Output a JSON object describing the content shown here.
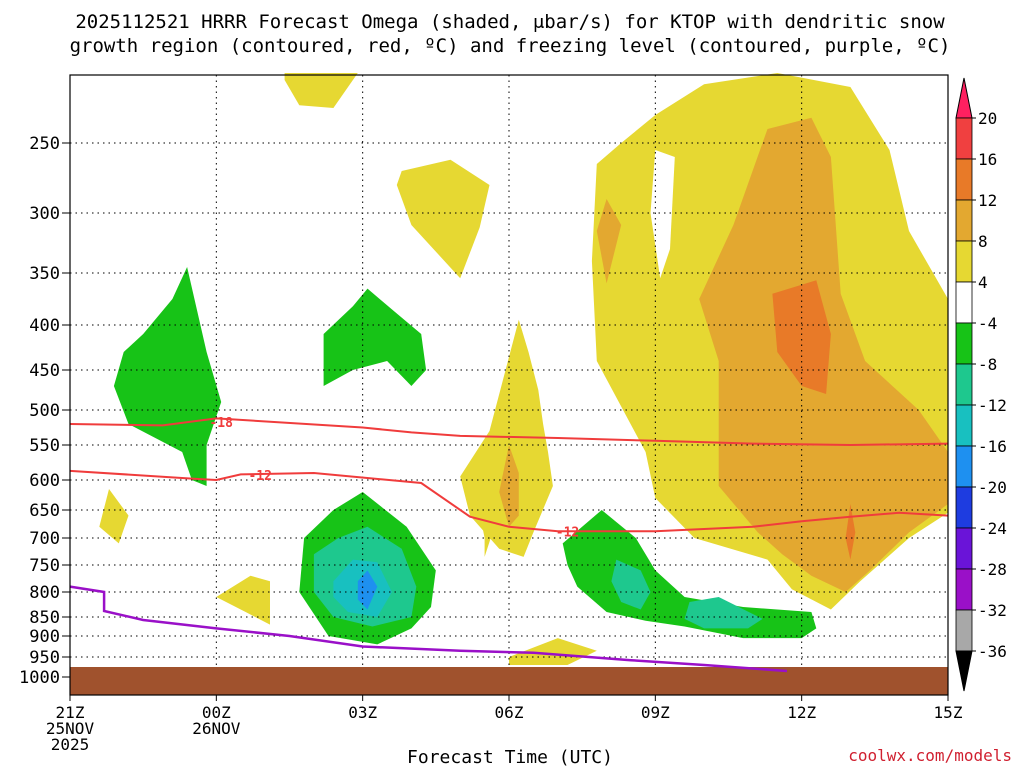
{
  "chart_data": {
    "type": "heatmap",
    "title_line1": "2025112521 HRRR Forecast Omega (shaded, μbar/s) for KTOP with dendritic snow",
    "title_line2": "growth region (contoured, red, ºC) and freezing level (contoured, purple, ºC)",
    "xlabel": "Forecast Time (UTC)",
    "ylabel": "",
    "credit": "coolwx.com/models",
    "x_range_hours": [
      0,
      18
    ],
    "x_ticks": [
      {
        "hour": 0,
        "lines": [
          "21Z",
          "25NOV",
          "2025"
        ]
      },
      {
        "hour": 3,
        "lines": [
          "00Z",
          "26NOV"
        ]
      },
      {
        "hour": 6,
        "lines": [
          "03Z"
        ]
      },
      {
        "hour": 9,
        "lines": [
          "06Z"
        ]
      },
      {
        "hour": 12,
        "lines": [
          "09Z"
        ]
      },
      {
        "hour": 15,
        "lines": [
          "12Z"
        ]
      },
      {
        "hour": 18,
        "lines": [
          "15Z"
        ]
      }
    ],
    "y_ticks_hpa": [
      250,
      300,
      350,
      400,
      450,
      500,
      550,
      600,
      650,
      700,
      750,
      800,
      850,
      900,
      950,
      1000
    ],
    "colorbar": {
      "levels": [
        20,
        16,
        12,
        8,
        4,
        -4,
        -8,
        -12,
        -16,
        -20,
        -24,
        -28,
        -32,
        -36
      ],
      "colors": [
        "#ff2060",
        "#f04040",
        "#e87a28",
        "#e3a830",
        "#e6d832",
        "#ffffff",
        "#17c317",
        "#1ec88e",
        "#18c0c0",
        "#1e90f0",
        "#1e3ce0",
        "#6a14d8",
        "#9a10c8",
        "#a8a8a8",
        "#000000"
      ]
    },
    "omega_regions": [
      {
        "value": 4,
        "color": "#e6d832",
        "points": [
          [
            4.4,
            180
          ],
          [
            5.8,
            180
          ],
          [
            5.9,
            196
          ],
          [
            5.4,
            225
          ],
          [
            4.7,
            223
          ],
          [
            4.4,
            205
          ]
        ]
      },
      {
        "value": 4,
        "color": "#e6d832",
        "points": [
          [
            6.8,
            270
          ],
          [
            7.8,
            262
          ],
          [
            8.6,
            280
          ],
          [
            8.4,
            312
          ],
          [
            8.0,
            355
          ],
          [
            7.0,
            310
          ],
          [
            6.7,
            280
          ]
        ]
      },
      {
        "value": 4,
        "color": "#e6d832",
        "points": [
          [
            10.8,
            265
          ],
          [
            11.3,
            250
          ],
          [
            12.0,
            230
          ],
          [
            13.0,
            208
          ],
          [
            14.5,
            200
          ],
          [
            16.0,
            210
          ],
          [
            16.8,
            255
          ],
          [
            17.2,
            315
          ],
          [
            18.0,
            375
          ],
          [
            18.0,
            655
          ],
          [
            17.2,
            700
          ],
          [
            16.2,
            780
          ],
          [
            15.6,
            835
          ],
          [
            14.8,
            795
          ],
          [
            14.3,
            740
          ],
          [
            12.8,
            700
          ],
          [
            12.0,
            630
          ],
          [
            11.8,
            560
          ],
          [
            10.8,
            440
          ],
          [
            10.7,
            340
          ]
        ]
      },
      {
        "value": 4,
        "color": "#e6d832",
        "points": [
          [
            8.8,
            570
          ],
          [
            9.5,
            450
          ],
          [
            9.0,
            620
          ],
          [
            8.7,
            680
          ],
          [
            8.5,
            735
          ],
          [
            8.5,
            700
          ],
          [
            8.3,
            615
          ]
        ]
      },
      {
        "value": 4,
        "color": "#e6d832",
        "points": [
          [
            9.2,
            395
          ],
          [
            9.4,
            430
          ],
          [
            9.6,
            475
          ],
          [
            9.7,
            520
          ],
          [
            9.8,
            560
          ],
          [
            9.9,
            610
          ],
          [
            9.5,
            690
          ],
          [
            9.3,
            735
          ],
          [
            8.8,
            720
          ],
          [
            8.2,
            660
          ],
          [
            8.0,
            595
          ],
          [
            8.6,
            530
          ]
        ]
      },
      {
        "value": 4,
        "color": "#e6d832",
        "points": [
          [
            0.8,
            615
          ],
          [
            1.2,
            660
          ],
          [
            1.0,
            710
          ],
          [
            0.6,
            680
          ]
        ]
      },
      {
        "value": 4,
        "color": "#e6d832",
        "points": [
          [
            3.0,
            810
          ],
          [
            3.7,
            770
          ],
          [
            4.1,
            780
          ],
          [
            4.1,
            870
          ],
          [
            3.6,
            840
          ]
        ]
      },
      {
        "value": 4,
        "color": "#e6d832",
        "points": [
          [
            9.0,
            950
          ],
          [
            10.0,
            905
          ],
          [
            10.8,
            935
          ],
          [
            10.2,
            970
          ],
          [
            9.0,
            970
          ]
        ]
      },
      {
        "value": -4,
        "color": "#ffffff",
        "points": [
          [
            12.0,
            255
          ],
          [
            12.4,
            260
          ],
          [
            12.3,
            330
          ],
          [
            12.1,
            355
          ],
          [
            11.9,
            300
          ]
        ]
      },
      {
        "value": 8,
        "color": "#e3a830",
        "points": [
          [
            13.3,
            440
          ],
          [
            12.9,
            375
          ],
          [
            13.6,
            310
          ],
          [
            14.3,
            240
          ],
          [
            15.2,
            232
          ],
          [
            15.6,
            260
          ],
          [
            15.8,
            370
          ],
          [
            16.3,
            440
          ],
          [
            17.4,
            500
          ],
          [
            18.0,
            560
          ],
          [
            18.0,
            640
          ],
          [
            17.2,
            690
          ],
          [
            16.4,
            760
          ],
          [
            15.9,
            800
          ],
          [
            15.2,
            770
          ],
          [
            14.6,
            730
          ],
          [
            14.1,
            690
          ],
          [
            13.3,
            610
          ]
        ]
      },
      {
        "value": 8,
        "color": "#e3a830",
        "points": [
          [
            11.0,
            290
          ],
          [
            11.3,
            310
          ],
          [
            11.0,
            360
          ],
          [
            10.8,
            315
          ]
        ]
      },
      {
        "value": 8,
        "color": "#e3a830",
        "points": [
          [
            9.0,
            550
          ],
          [
            9.2,
            590
          ],
          [
            9.2,
            660
          ],
          [
            9.0,
            680
          ],
          [
            8.8,
            620
          ]
        ]
      },
      {
        "value": 12,
        "color": "#e87a28",
        "points": [
          [
            14.4,
            370
          ],
          [
            15.3,
            357
          ],
          [
            15.6,
            410
          ],
          [
            15.5,
            480
          ],
          [
            15.0,
            470
          ],
          [
            14.5,
            430
          ]
        ]
      },
      {
        "value": 12,
        "color": "#e87a28",
        "points": [
          [
            16.0,
            640
          ],
          [
            16.1,
            690
          ],
          [
            16.0,
            740
          ],
          [
            15.9,
            700
          ]
        ]
      },
      {
        "value": -4,
        "color": "#17c317",
        "points": [
          [
            1.5,
            410
          ],
          [
            2.1,
            375
          ],
          [
            2.4,
            345
          ],
          [
            2.8,
            430
          ],
          [
            3.1,
            490
          ],
          [
            2.8,
            550
          ],
          [
            2.8,
            610
          ],
          [
            2.5,
            600
          ],
          [
            2.3,
            560
          ],
          [
            1.2,
            520
          ],
          [
            0.9,
            470
          ],
          [
            1.1,
            430
          ]
        ]
      },
      {
        "value": -4,
        "color": "#17c317",
        "points": [
          [
            5.2,
            410
          ],
          [
            5.8,
            382
          ],
          [
            6.1,
            365
          ],
          [
            6.6,
            385
          ],
          [
            7.2,
            410
          ],
          [
            7.3,
            450
          ],
          [
            7.0,
            470
          ],
          [
            6.5,
            440
          ],
          [
            5.8,
            450
          ],
          [
            5.2,
            470
          ]
        ]
      },
      {
        "value": -4,
        "color": "#17c317",
        "points": [
          [
            4.8,
            700
          ],
          [
            5.4,
            650
          ],
          [
            6.0,
            620
          ],
          [
            6.9,
            680
          ],
          [
            7.5,
            760
          ],
          [
            7.4,
            830
          ],
          [
            7.0,
            880
          ],
          [
            6.3,
            920
          ],
          [
            5.3,
            900
          ],
          [
            4.7,
            800
          ]
        ]
      },
      {
        "value": -4,
        "color": "#17c317",
        "points": [
          [
            10.1,
            710
          ],
          [
            10.9,
            650
          ],
          [
            11.6,
            700
          ],
          [
            12.0,
            760
          ],
          [
            12.6,
            810
          ],
          [
            13.8,
            830
          ],
          [
            15.2,
            840
          ],
          [
            15.3,
            880
          ],
          [
            15.0,
            905
          ],
          [
            13.8,
            905
          ],
          [
            12.6,
            875
          ],
          [
            11.8,
            860
          ],
          [
            11.0,
            840
          ],
          [
            10.4,
            790
          ],
          [
            10.2,
            750
          ]
        ]
      },
      {
        "value": -8,
        "color": "#1ec88e",
        "points": [
          [
            5.0,
            730
          ],
          [
            5.5,
            700
          ],
          [
            6.1,
            680
          ],
          [
            6.8,
            720
          ],
          [
            7.1,
            790
          ],
          [
            7.0,
            850
          ],
          [
            6.2,
            875
          ],
          [
            5.4,
            850
          ],
          [
            5.0,
            800
          ]
        ]
      },
      {
        "value": -8,
        "color": "#1ec88e",
        "points": [
          [
            11.2,
            740
          ],
          [
            11.7,
            760
          ],
          [
            11.9,
            800
          ],
          [
            11.7,
            835
          ],
          [
            11.3,
            820
          ],
          [
            11.1,
            780
          ]
        ]
      },
      {
        "value": -8,
        "color": "#1ec88e",
        "points": [
          [
            12.7,
            820
          ],
          [
            13.3,
            810
          ],
          [
            14.2,
            855
          ],
          [
            13.9,
            880
          ],
          [
            13.0,
            880
          ],
          [
            12.6,
            855
          ]
        ]
      },
      {
        "value": -12,
        "color": "#18c0c0",
        "points": [
          [
            5.4,
            780
          ],
          [
            5.8,
            740
          ],
          [
            6.3,
            745
          ],
          [
            6.6,
            800
          ],
          [
            6.3,
            850
          ],
          [
            5.7,
            840
          ],
          [
            5.4,
            810
          ]
        ]
      },
      {
        "value": -16,
        "color": "#1e90f0",
        "points": [
          [
            5.9,
            780
          ],
          [
            6.1,
            760
          ],
          [
            6.3,
            790
          ],
          [
            6.1,
            835
          ],
          [
            5.9,
            815
          ]
        ]
      }
    ],
    "dgz_contours": [
      {
        "label": "-18",
        "label_at": [
          3.1,
          517
        ],
        "points": [
          [
            0,
            520
          ],
          [
            1.9,
            522
          ],
          [
            3.0,
            512
          ],
          [
            6.0,
            525
          ],
          [
            7.0,
            532
          ],
          [
            8.0,
            537
          ],
          [
            10.0,
            540
          ],
          [
            12.0,
            544
          ],
          [
            14.0,
            548
          ],
          [
            16.0,
            550
          ],
          [
            18.0,
            548
          ]
        ]
      },
      {
        "label": "-12",
        "label_at": [
          3.9,
          593
        ],
        "points": [
          [
            0,
            587
          ],
          [
            2.5,
            598
          ],
          [
            3.0,
            600
          ],
          [
            3.5,
            592
          ],
          [
            5.0,
            590
          ],
          [
            7.2,
            605
          ],
          [
            8.2,
            662
          ],
          [
            9.0,
            680
          ],
          [
            10.0,
            688
          ],
          [
            12.0,
            688
          ],
          [
            14.0,
            680
          ],
          [
            15.0,
            670
          ],
          [
            16.0,
            662
          ],
          [
            17.0,
            655
          ],
          [
            18.0,
            660
          ]
        ]
      },
      {
        "label": "-12",
        "label_at": [
          10.2,
          688
        ],
        "points": []
      }
    ],
    "freezing_level": {
      "points": [
        [
          0,
          790
        ],
        [
          0.7,
          800
        ],
        [
          0.7,
          838
        ],
        [
          1.5,
          858
        ],
        [
          3.0,
          880
        ],
        [
          4.5,
          900
        ],
        [
          6.0,
          925
        ],
        [
          8.0,
          935
        ],
        [
          9.5,
          940
        ],
        [
          11.5,
          958
        ],
        [
          13.0,
          970
        ],
        [
          14.7,
          985
        ]
      ]
    },
    "terrain_top_hpa": 975
  }
}
